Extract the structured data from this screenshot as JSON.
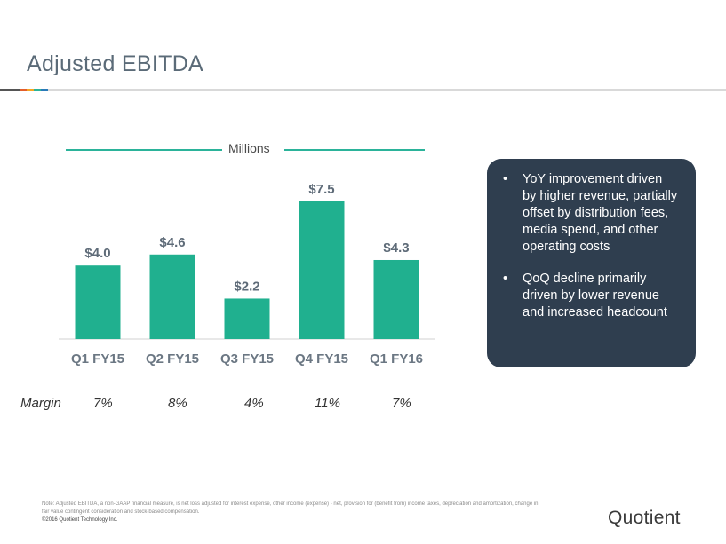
{
  "slide": {
    "title": "Adjusted EBITDA",
    "units_label": "Millions",
    "accent_colors": [
      "#555555",
      "#e35f2c",
      "#f5a623",
      "#2bb39a",
      "#2a7ab8",
      "#d9d9d9"
    ]
  },
  "chart_data": {
    "type": "bar",
    "categories": [
      "Q1 FY15",
      "Q2 FY15",
      "Q3 FY15",
      "Q4 FY15",
      "Q1 FY16"
    ],
    "values": [
      4.0,
      4.6,
      2.2,
      7.5,
      4.3
    ],
    "value_labels": [
      "$4.0",
      "$4.6",
      "$2.2",
      "$7.5",
      "$4.3"
    ],
    "bar_color": "#20b08f",
    "ylim": [
      0,
      8
    ]
  },
  "margin": {
    "label": "Margin",
    "values": [
      "7%",
      "8%",
      "4%",
      "11%",
      "7%"
    ]
  },
  "callout": {
    "bullet": "•",
    "items": [
      "YoY improvement driven by higher revenue, partially offset by distribution fees, media spend, and other operating costs",
      "QoQ decline primarily driven by lower revenue and increased headcount"
    ]
  },
  "footer": {
    "note": "Note: Adjusted EBITDA, a non-GAAP financial measure, is net loss adjusted for interest expense,  other income (expense) - net, provision for (benefit from) income taxes, depreciation and amortization, change in fair value contingent consideration and stock-based compensation.",
    "copyright": "©2016 Quotient Technology Inc.",
    "logo": "Quotient"
  }
}
